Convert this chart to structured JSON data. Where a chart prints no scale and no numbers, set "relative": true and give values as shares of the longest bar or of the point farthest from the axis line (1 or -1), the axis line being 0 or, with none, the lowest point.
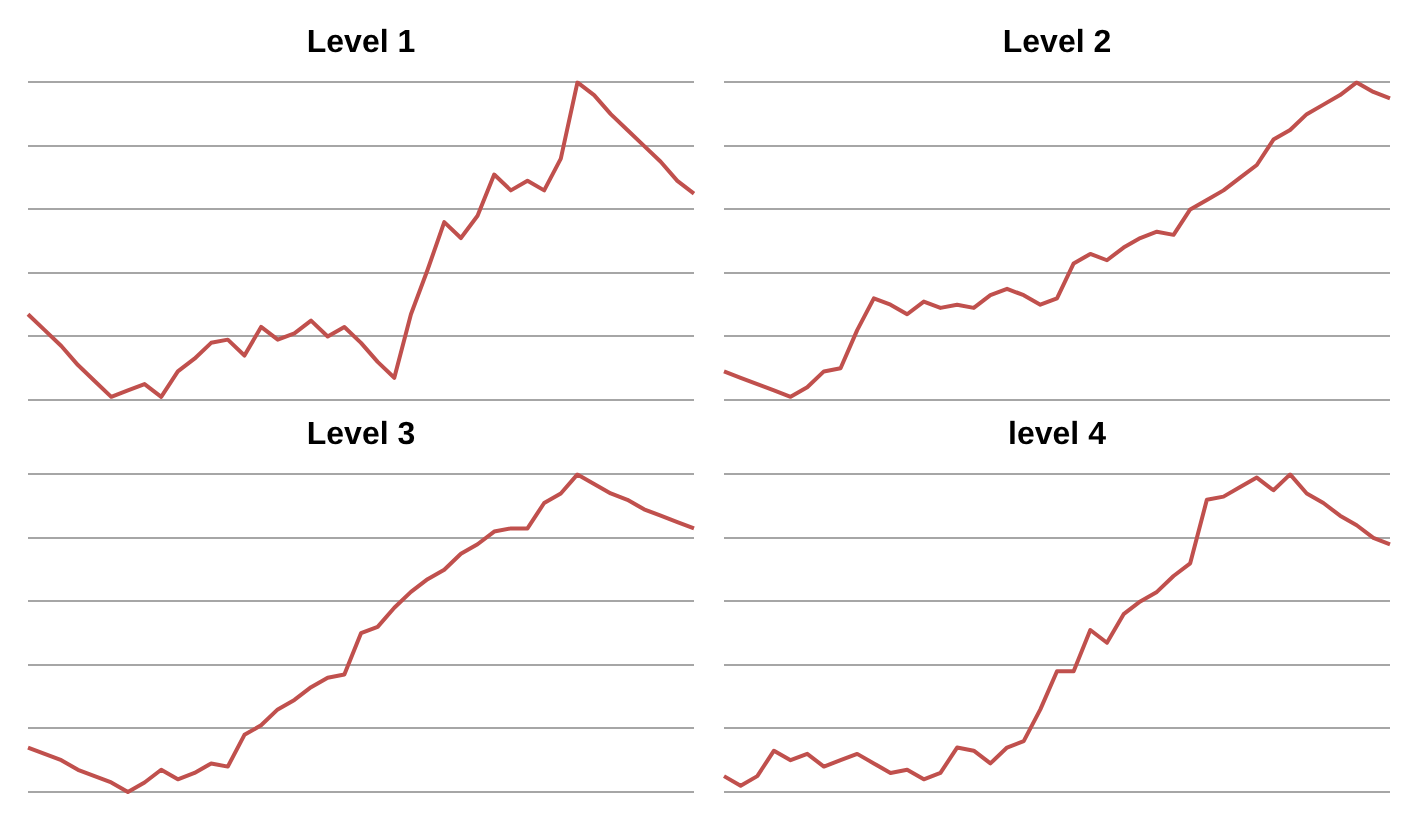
{
  "chart_data": [
    {
      "type": "line",
      "title": "Level 1",
      "relative": true,
      "grid": "y",
      "legend": false,
      "marker": "none",
      "line_style": "solid",
      "categories": [
        null,
        null,
        null,
        null,
        null,
        null,
        null,
        null,
        null,
        null,
        null,
        null,
        null,
        null,
        null,
        null,
        null,
        null,
        null,
        null,
        null,
        null,
        null,
        null,
        null,
        null,
        null,
        null,
        null,
        null,
        null,
        null,
        null,
        null,
        null,
        null,
        null,
        null,
        null,
        null,
        null
      ],
      "series": [
        {
          "color": "#c0504d",
          "values": [
            0.27,
            0.22,
            0.17,
            0.11,
            0.06,
            0.01,
            0.03,
            0.05,
            0.01,
            0.09,
            0.13,
            0.18,
            0.19,
            0.14,
            0.23,
            0.19,
            0.21,
            0.25,
            0.2,
            0.23,
            0.18,
            0.12,
            0.07,
            0.27,
            0.41,
            0.56,
            0.51,
            0.58,
            0.71,
            0.66,
            0.69,
            0.66,
            0.76,
            1,
            0.96,
            0.9,
            0.85,
            0.8,
            0.75,
            0.69,
            0.65
          ]
        }
      ]
    },
    {
      "type": "line",
      "title": "Level 2",
      "relative": true,
      "grid": "y",
      "legend": false,
      "marker": "none",
      "line_style": "solid",
      "categories": [
        null,
        null,
        null,
        null,
        null,
        null,
        null,
        null,
        null,
        null,
        null,
        null,
        null,
        null,
        null,
        null,
        null,
        null,
        null,
        null,
        null,
        null,
        null,
        null,
        null,
        null,
        null,
        null,
        null,
        null,
        null,
        null,
        null,
        null,
        null,
        null,
        null,
        null,
        null,
        null,
        null
      ],
      "series": [
        {
          "color": "#c0504d",
          "values": [
            0.09,
            0.07,
            0.05,
            0.03,
            0.01,
            0.04,
            0.09,
            0.1,
            0.22,
            0.32,
            0.3,
            0.27,
            0.31,
            0.29,
            0.3,
            0.29,
            0.33,
            0.35,
            0.33,
            0.3,
            0.32,
            0.43,
            0.46,
            0.44,
            0.48,
            0.51,
            0.53,
            0.52,
            0.6,
            0.63,
            0.66,
            0.7,
            0.74,
            0.82,
            0.85,
            0.9,
            0.93,
            0.96,
            1,
            0.97,
            0.95
          ]
        }
      ]
    },
    {
      "type": "line",
      "title": "Level 3",
      "relative": true,
      "grid": "y",
      "legend": false,
      "marker": "none",
      "line_style": "solid",
      "categories": [
        null,
        null,
        null,
        null,
        null,
        null,
        null,
        null,
        null,
        null,
        null,
        null,
        null,
        null,
        null,
        null,
        null,
        null,
        null,
        null,
        null,
        null,
        null,
        null,
        null,
        null,
        null,
        null,
        null,
        null,
        null,
        null,
        null,
        null,
        null,
        null,
        null,
        null,
        null,
        null,
        null
      ],
      "series": [
        {
          "color": "#c0504d",
          "values": [
            0.14,
            0.12,
            0.1,
            0.07,
            0.05,
            0.03,
            0,
            0.03,
            0.07,
            0.04,
            0.06,
            0.09,
            0.08,
            0.18,
            0.21,
            0.26,
            0.29,
            0.33,
            0.36,
            0.37,
            0.5,
            0.52,
            0.58,
            0.63,
            0.67,
            0.7,
            0.75,
            0.78,
            0.82,
            0.83,
            0.83,
            0.91,
            0.94,
            1,
            0.97,
            0.94,
            0.92,
            0.89,
            0.87,
            0.85,
            0.83
          ]
        }
      ]
    },
    {
      "type": "line",
      "title": "level 4",
      "relative": true,
      "grid": "y",
      "legend": false,
      "marker": "none",
      "line_style": "solid",
      "categories": [
        null,
        null,
        null,
        null,
        null,
        null,
        null,
        null,
        null,
        null,
        null,
        null,
        null,
        null,
        null,
        null,
        null,
        null,
        null,
        null,
        null,
        null,
        null,
        null,
        null,
        null,
        null,
        null,
        null,
        null,
        null,
        null,
        null,
        null,
        null,
        null,
        null,
        null,
        null,
        null,
        null
      ],
      "series": [
        {
          "color": "#c0504d",
          "values": [
            0.05,
            0.02,
            0.05,
            0.13,
            0.1,
            0.12,
            0.08,
            0.1,
            0.12,
            0.09,
            0.06,
            0.07,
            0.04,
            0.06,
            0.14,
            0.13,
            0.09,
            0.14,
            0.16,
            0.26,
            0.38,
            0.38,
            0.51,
            0.47,
            0.56,
            0.6,
            0.63,
            0.68,
            0.72,
            0.92,
            0.93,
            0.96,
            0.99,
            0.95,
            1,
            0.94,
            0.91,
            0.87,
            0.84,
            0.8,
            0.78
          ]
        }
      ]
    }
  ]
}
